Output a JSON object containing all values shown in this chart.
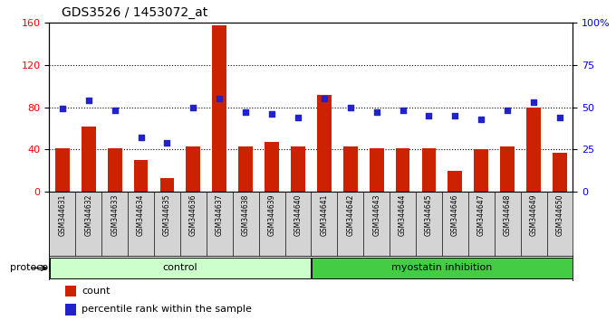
{
  "title": "GDS3526 / 1453072_at",
  "samples": [
    "GSM344631",
    "GSM344632",
    "GSM344633",
    "GSM344634",
    "GSM344635",
    "GSM344636",
    "GSM344637",
    "GSM344638",
    "GSM344639",
    "GSM344640",
    "GSM344641",
    "GSM344642",
    "GSM344643",
    "GSM344644",
    "GSM344645",
    "GSM344646",
    "GSM344647",
    "GSM344648",
    "GSM344649",
    "GSM344650"
  ],
  "counts": [
    41,
    62,
    41,
    30,
    13,
    43,
    157,
    43,
    47,
    43,
    92,
    43,
    41,
    41,
    41,
    20,
    40,
    43,
    80,
    37
  ],
  "percentiles": [
    49,
    54,
    48,
    32,
    29,
    50,
    55,
    47,
    46,
    44,
    55,
    50,
    47,
    48,
    45,
    45,
    43,
    48,
    53,
    44
  ],
  "n_control": 10,
  "n_myostatin": 10,
  "bar_color": "#cc2200",
  "dot_color": "#2222cc",
  "left_ylim": [
    0,
    160
  ],
  "left_yticks": [
    0,
    40,
    80,
    120,
    160
  ],
  "right_ylim": [
    0,
    100
  ],
  "right_yticks": [
    0,
    25,
    50,
    75,
    100
  ],
  "background_plot": "#ffffff",
  "background_xlabels": "#d4d4d4",
  "protocol_label": "protocol",
  "control_color": "#ccffcc",
  "myostatin_color": "#44cc44",
  "legend_count": "count",
  "legend_percentile": "percentile rank within the sample",
  "title_fontsize": 10,
  "tick_fontsize": 8,
  "sample_fontsize": 5.5
}
